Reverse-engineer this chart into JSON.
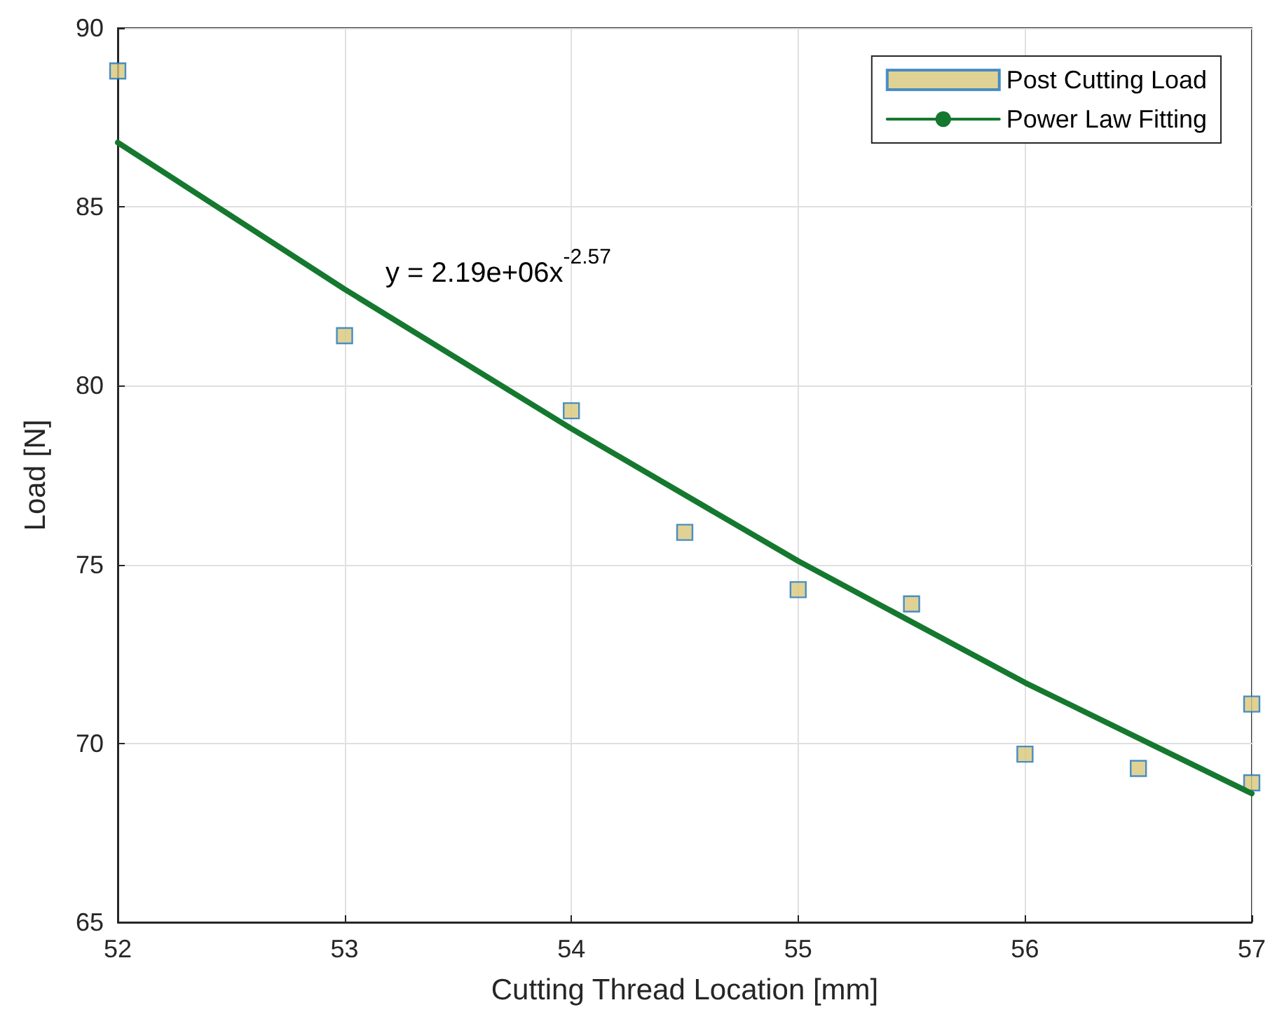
{
  "chart_data": {
    "type": "scatter",
    "xlabel": "Cutting Thread Location [mm]",
    "ylabel": "Load [N]",
    "xlim": [
      52,
      57
    ],
    "xticks": [
      52,
      53,
      54,
      55,
      56,
      57
    ],
    "ylim": [
      65,
      90
    ],
    "yticks": [
      65,
      70,
      75,
      80,
      85,
      90
    ],
    "grid": true,
    "legend": "top right",
    "annotations": [
      "y = 2.19e+06x$^{-2.57}$"
    ],
    "series": [
      {
        "name": "Post Cutting Load",
        "marker": "square",
        "color": "#d8c77a",
        "x": [
          52,
          53,
          54,
          54.5,
          55,
          55.5,
          56,
          56.5,
          57,
          57
        ],
        "values": [
          88.8,
          81.4,
          79.3,
          75.9,
          74.3,
          73.9,
          69.7,
          69.3,
          71.1,
          68.9
        ]
      },
      {
        "name": "Power Law Fitting",
        "type": "line",
        "color": "#15782f",
        "line_style": "solid",
        "x": [
          52,
          53,
          54,
          55,
          56,
          57
        ],
        "values": [
          86.8,
          82.7,
          78.8,
          75.1,
          71.7,
          68.6
        ]
      }
    ]
  }
}
